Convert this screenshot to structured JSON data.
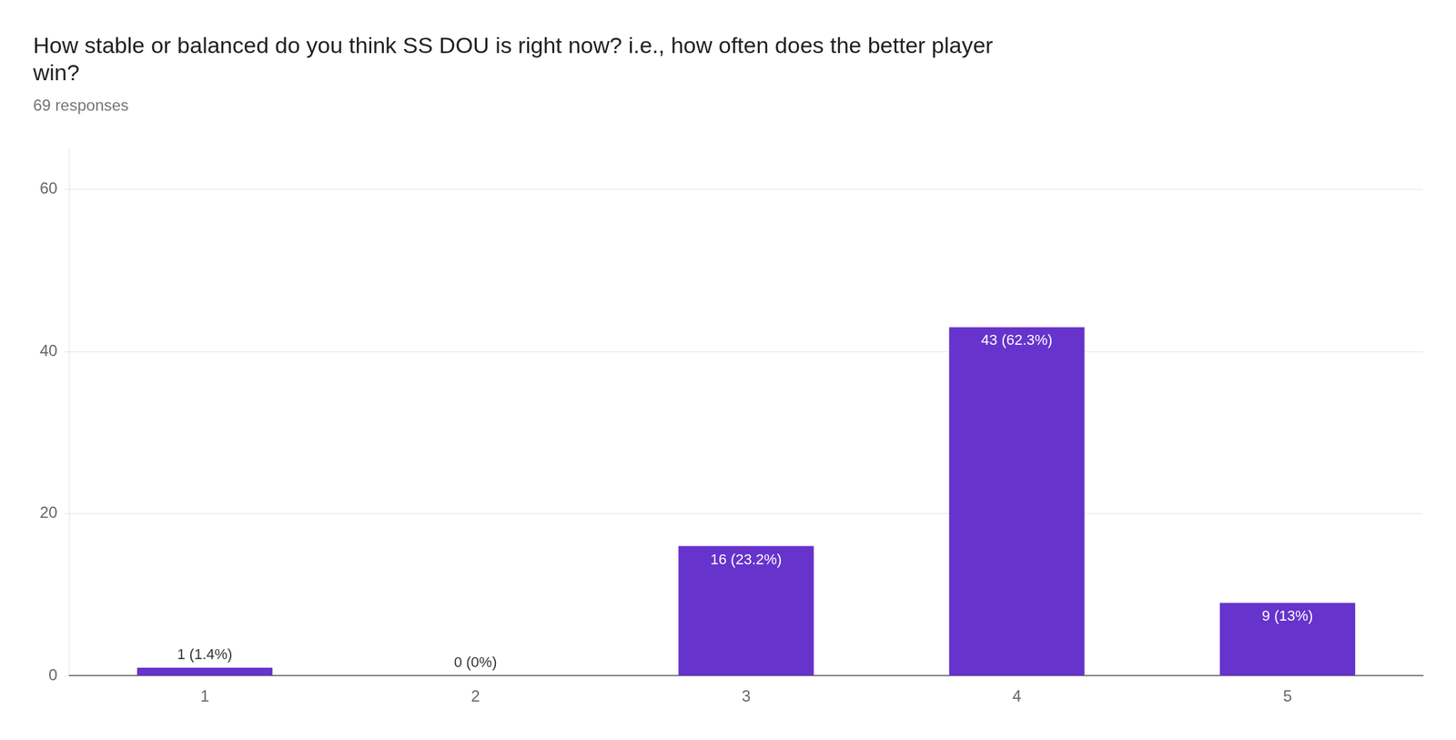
{
  "chart_data": {
    "type": "bar",
    "title": [
      "How stable or balanced do you think SS DOU is right now? i.e., how often does the better player",
      "win?"
    ],
    "subtitle": "69 responses",
    "categories": [
      1,
      2,
      3,
      4,
      5
    ],
    "values": [
      1,
      0,
      16,
      43,
      9
    ],
    "value_labels": [
      "1 (1.4%)",
      "0 (0%)",
      "16 (23.2%)",
      "43 (62.3%)",
      "9 (13%)"
    ],
    "data_labels": true,
    "color": "#6633cc",
    "ylim": [
      0,
      65
    ],
    "yticks": [
      0,
      20,
      40,
      60
    ],
    "grid": true
  }
}
